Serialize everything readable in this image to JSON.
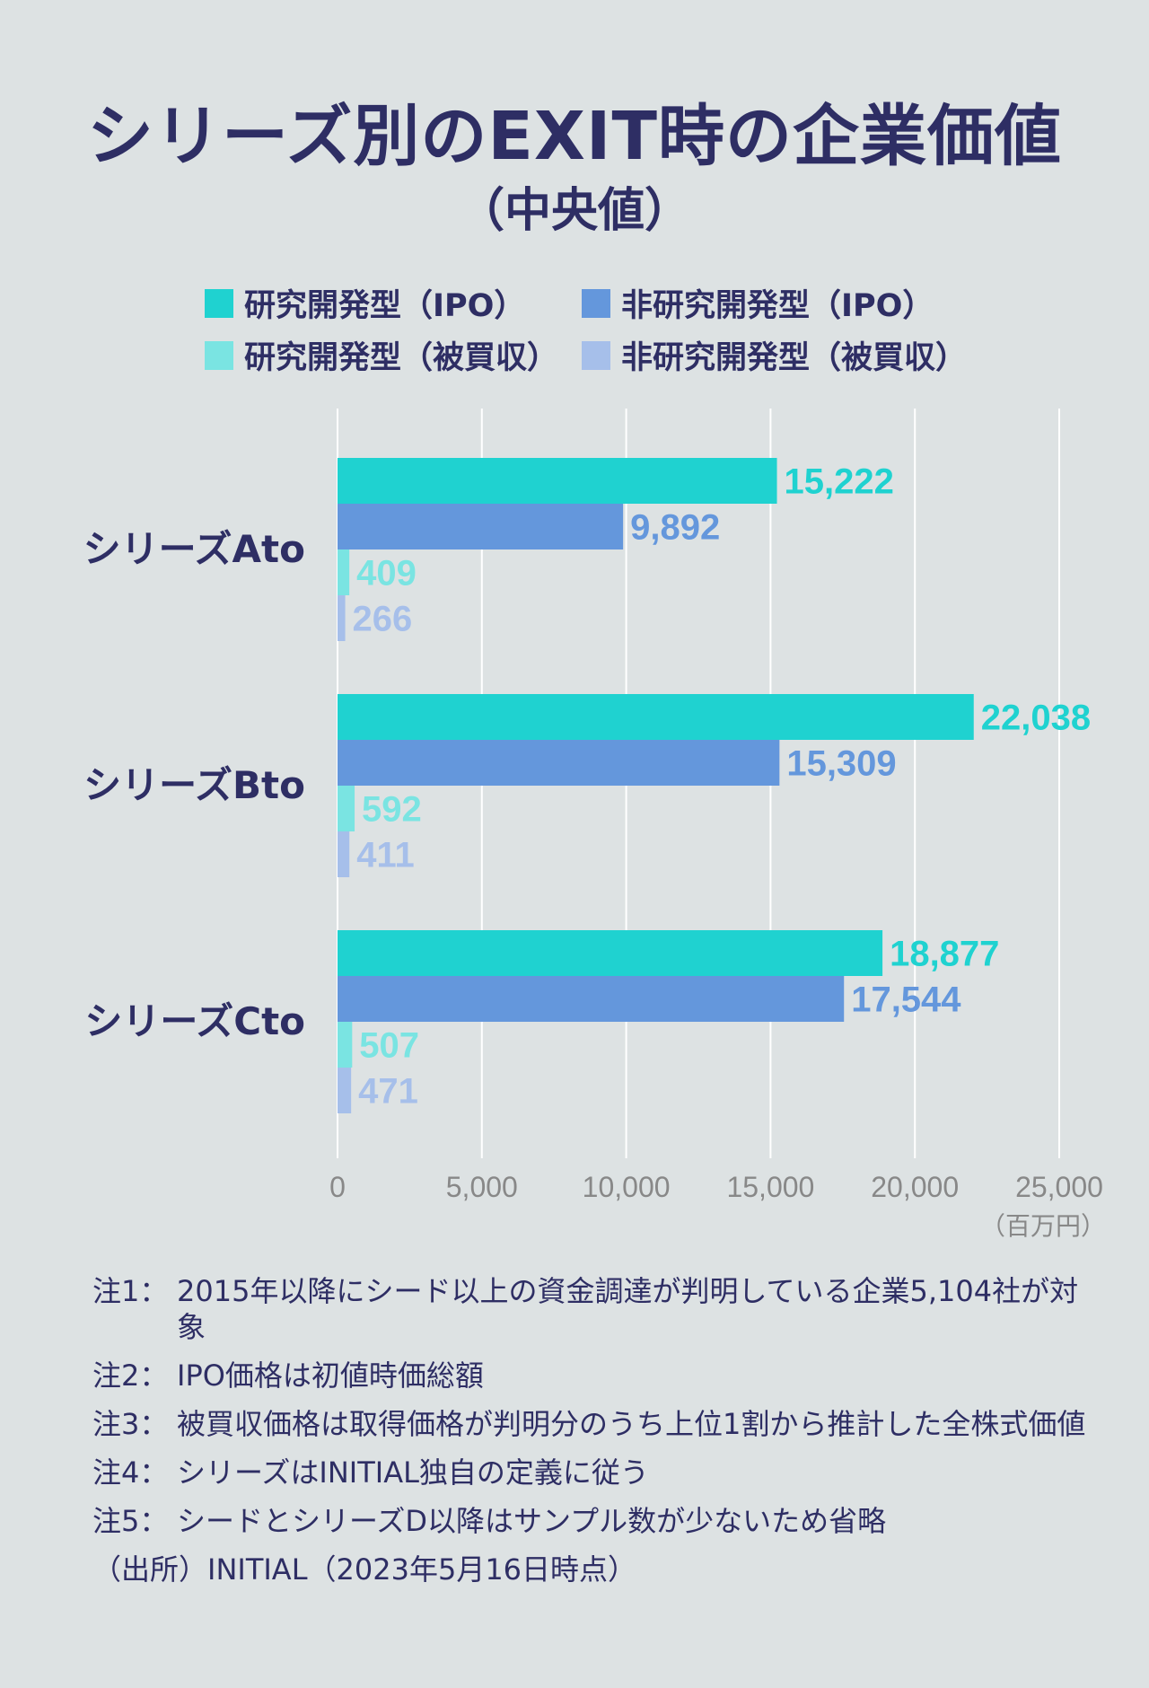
{
  "title": "シリーズ別のEXIT時の企業価値",
  "subtitle": "（中央値）",
  "colors": {
    "rd_ipo": "#1fd2d0",
    "nonrd_ipo": "#6497dc",
    "rd_acq": "#7ae4e2",
    "nonrd_acq": "#a6bfea",
    "grid": "#ffffff",
    "axis_text": "#888888",
    "category_text": "#2e2e64"
  },
  "legend": [
    {
      "label": "研究開発型（IPO）",
      "color": "#1fd2d0"
    },
    {
      "label": "非研究開発型（IPO）",
      "color": "#6497dc"
    },
    {
      "label": "研究開発型（被買収）",
      "color": "#7ae4e2"
    },
    {
      "label": "非研究開発型（被買収）",
      "color": "#a6bfea"
    }
  ],
  "chart_data": {
    "type": "bar",
    "orientation": "horizontal",
    "categories": [
      "シリーズAto",
      "シリーズBto",
      "シリーズCto"
    ],
    "series": [
      {
        "name": "研究開発型（IPO）",
        "color": "#1fd2d0",
        "values": [
          15222,
          22038,
          18877
        ],
        "labels": [
          "15,222",
          "22,038",
          "18,877"
        ]
      },
      {
        "name": "非研究開発型（IPO）",
        "color": "#6497dc",
        "values": [
          9892,
          15309,
          17544
        ],
        "labels": [
          "9,892",
          "15,309",
          "17,544"
        ]
      },
      {
        "name": "研究開発型（被買収）",
        "color": "#7ae4e2",
        "values": [
          409,
          592,
          507
        ],
        "labels": [
          "409",
          "592",
          "507"
        ]
      },
      {
        "name": "非研究開発型（被買収）",
        "color": "#a6bfea",
        "values": [
          266,
          411,
          471
        ],
        "labels": [
          "266",
          "411",
          "471"
        ]
      }
    ],
    "xlim": [
      0,
      25000
    ],
    "xticks": [
      0,
      5000,
      10000,
      15000,
      20000,
      25000
    ],
    "xtick_labels": [
      "0",
      "5,000",
      "10,000",
      "15,000",
      "20,000",
      "25,000"
    ],
    "unit_label": "（百万円）",
    "grid": true
  },
  "notes": [
    {
      "label": "注1：",
      "text": "2015年以降にシード以上の資金調達が判明している企業5,104社が対象"
    },
    {
      "label": "注2：",
      "text": "IPO価格は初値時価総額"
    },
    {
      "label": "注3：",
      "text": "被買収価格は取得価格が判明分のうち上位1割から推計した全株式価値"
    },
    {
      "label": "注4：",
      "text": "シリーズはINITIAL独自の定義に従う"
    },
    {
      "label": "注5：",
      "text": "シードとシリーズD以降はサンプル数が少ないため省略"
    }
  ],
  "source": "（出所）INITIAL（2023年5月16日時点）"
}
